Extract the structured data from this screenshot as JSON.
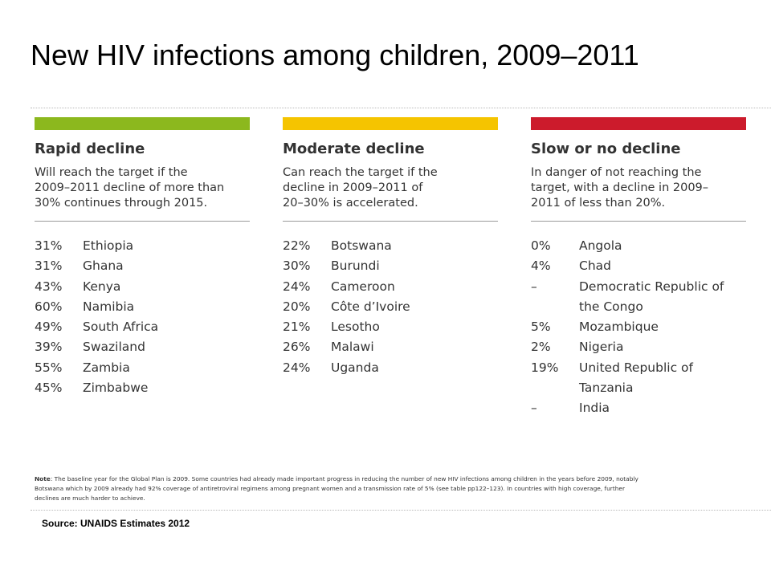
{
  "title": "New HIV infections among children, 2009–2011",
  "colors": {
    "rapid": "#8cb81e",
    "moderate": "#f5c400",
    "slow": "#cc1b2c"
  },
  "columns": [
    {
      "heading": "Rapid decline",
      "description_lines": [
        "Will reach the target if the",
        "2009–2011 decline of more than",
        "30% continues through 2015."
      ],
      "rows": [
        {
          "pct": "31%",
          "country": "Ethiopia"
        },
        {
          "pct": "31%",
          "country": "Ghana"
        },
        {
          "pct": "43%",
          "country": "Kenya"
        },
        {
          "pct": "60%",
          "country": "Namibia"
        },
        {
          "pct": "49%",
          "country": "South Africa"
        },
        {
          "pct": "39%",
          "country": "Swaziland"
        },
        {
          "pct": "55%",
          "country": "Zambia"
        },
        {
          "pct": "45%",
          "country": "Zimbabwe"
        }
      ]
    },
    {
      "heading": "Moderate decline",
      "description_lines": [
        "Can reach the target if the",
        "decline in 2009–2011 of",
        "20–30% is accelerated."
      ],
      "rows": [
        {
          "pct": "22%",
          "country": "Botswana"
        },
        {
          "pct": "30%",
          "country": "Burundi"
        },
        {
          "pct": "24%",
          "country": "Cameroon"
        },
        {
          "pct": "20%",
          "country": "Côte d’Ivoire"
        },
        {
          "pct": "21%",
          "country": "Lesotho"
        },
        {
          "pct": "26%",
          "country": "Malawi"
        },
        {
          "pct": "24%",
          "country": "Uganda"
        }
      ]
    },
    {
      "heading": "Slow or no decline",
      "description_lines": [
        "In danger of not reaching the",
        "target, with a decline in 2009–",
        "2011 of less than 20%."
      ],
      "rows": [
        {
          "pct": "0%",
          "country": "Angola"
        },
        {
          "pct": "4%",
          "country": "Chad"
        },
        {
          "pct": "–",
          "country": "Democratic Republic of"
        },
        {
          "pct": "",
          "country": "the Congo"
        },
        {
          "pct": "5%",
          "country": "Mozambique"
        },
        {
          "pct": "2%",
          "country": "Nigeria"
        },
        {
          "pct": "19%",
          "country": "United Republic of"
        },
        {
          "pct": "",
          "country": "Tanzania"
        },
        {
          "pct": "–",
          "country": "India"
        }
      ]
    }
  ],
  "note": {
    "label": "Note",
    "lines": [
      ": The baseline year for the Global Plan is 2009. Some countries had already made important progress in reducing the number of new HIV infections among children in the years before 2009, notably",
      "Botswana which by 2009 already had 92% coverage of antiretroviral regimens among pregnant women and a transmission rate of 5% (see table pp122–123). In countries with high coverage, further",
      "declines are much harder to achieve."
    ]
  },
  "source": "Source: UNAIDS Estimates 2012"
}
